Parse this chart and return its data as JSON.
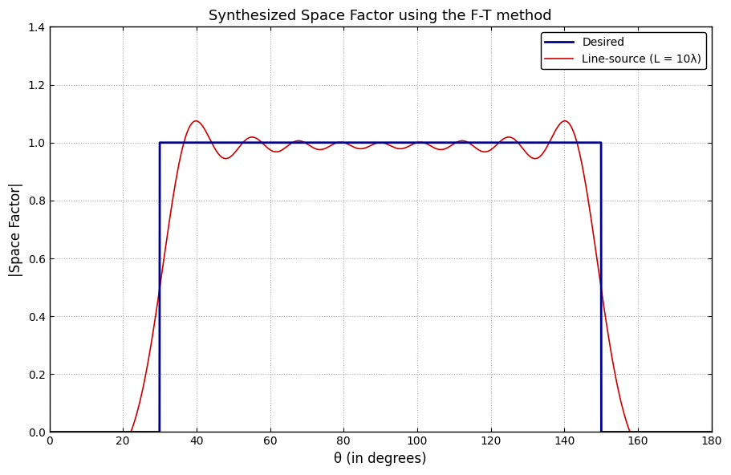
{
  "title": "Synthesized Space Factor using the F-T method",
  "xlabel": "θ (in degrees)",
  "ylabel": "|Space Factor|",
  "xlim": [
    0,
    180
  ],
  "ylim": [
    0,
    1.4
  ],
  "xticks": [
    0,
    20,
    40,
    60,
    80,
    100,
    120,
    140,
    160,
    180
  ],
  "yticks": [
    0,
    0.2,
    0.4,
    0.6,
    0.8,
    1.0,
    1.2,
    1.4
  ],
  "desired_color": "#00008B",
  "linesource_color": "#CC0000",
  "desired_label": "Desired",
  "linesource_label": "Line-source (L = 10λ)",
  "theta1": 30,
  "theta2": 150,
  "L_lambda": 10,
  "background_color": "#ffffff",
  "grid_color": "#aaaaaa",
  "title_fontsize": 13,
  "label_fontsize": 12,
  "legend_fontsize": 10
}
